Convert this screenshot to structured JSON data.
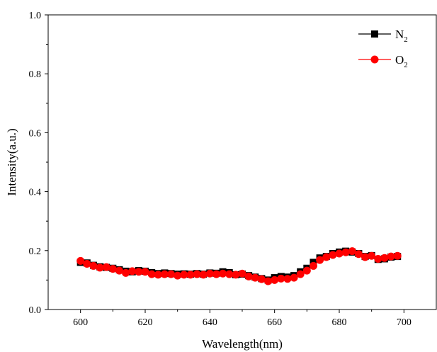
{
  "chart_data": {
    "type": "line",
    "xlabel": "Wavelength(nm)",
    "ylabel": "Intensity(a.u.)",
    "xlim": [
      590,
      710
    ],
    "ylim": [
      0.0,
      1.0
    ],
    "xticks": [
      600,
      620,
      640,
      660,
      680,
      700
    ],
    "yticks": [
      0.0,
      0.2,
      0.4,
      0.6,
      0.8,
      1.0
    ],
    "xtick_labels": [
      "600",
      "620",
      "640",
      "660",
      "680",
      "700"
    ],
    "ytick_labels": [
      "0.0",
      "0.2",
      "0.4",
      "0.6",
      "0.8",
      "1.0"
    ],
    "legend_position": "top-right",
    "grid": false,
    "series": [
      {
        "name": "N",
        "name_subscript": "2",
        "color": "#000000",
        "marker": "square",
        "x": [
          600,
          602,
          604,
          606,
          608,
          610,
          612,
          614,
          616,
          618,
          620,
          622,
          624,
          626,
          628,
          630,
          632,
          634,
          636,
          638,
          640,
          642,
          644,
          646,
          648,
          650,
          652,
          654,
          656,
          658,
          660,
          662,
          664,
          666,
          668,
          670,
          672,
          674,
          676,
          678,
          680,
          682,
          684,
          686,
          688,
          690,
          692,
          694,
          696,
          698
        ],
        "y": [
          0.16,
          0.158,
          0.15,
          0.145,
          0.143,
          0.14,
          0.135,
          0.13,
          0.128,
          0.132,
          0.13,
          0.125,
          0.122,
          0.124,
          0.122,
          0.12,
          0.121,
          0.12,
          0.122,
          0.12,
          0.124,
          0.123,
          0.128,
          0.125,
          0.118,
          0.12,
          0.115,
          0.11,
          0.105,
          0.1,
          0.108,
          0.112,
          0.11,
          0.115,
          0.128,
          0.14,
          0.16,
          0.175,
          0.18,
          0.19,
          0.195,
          0.198,
          0.195,
          0.19,
          0.18,
          0.183,
          0.17,
          0.172,
          0.178,
          0.18
        ]
      },
      {
        "name": "O",
        "name_subscript": "2",
        "color": "#ff0000",
        "marker": "circle",
        "x": [
          600,
          602,
          604,
          606,
          608,
          610,
          612,
          614,
          616,
          618,
          620,
          622,
          624,
          626,
          628,
          630,
          632,
          634,
          636,
          638,
          640,
          642,
          644,
          646,
          648,
          650,
          652,
          654,
          656,
          658,
          660,
          662,
          664,
          666,
          668,
          670,
          672,
          674,
          676,
          678,
          680,
          682,
          684,
          686,
          688,
          690,
          692,
          694,
          696,
          698
        ],
        "y": [
          0.165,
          0.155,
          0.148,
          0.142,
          0.144,
          0.138,
          0.132,
          0.124,
          0.13,
          0.128,
          0.128,
          0.12,
          0.118,
          0.12,
          0.12,
          0.115,
          0.118,
          0.118,
          0.12,
          0.118,
          0.122,
          0.12,
          0.122,
          0.12,
          0.118,
          0.122,
          0.112,
          0.108,
          0.103,
          0.096,
          0.1,
          0.105,
          0.104,
          0.108,
          0.12,
          0.132,
          0.148,
          0.168,
          0.178,
          0.185,
          0.19,
          0.194,
          0.198,
          0.188,
          0.178,
          0.182,
          0.172,
          0.175,
          0.18,
          0.182
        ]
      }
    ]
  }
}
